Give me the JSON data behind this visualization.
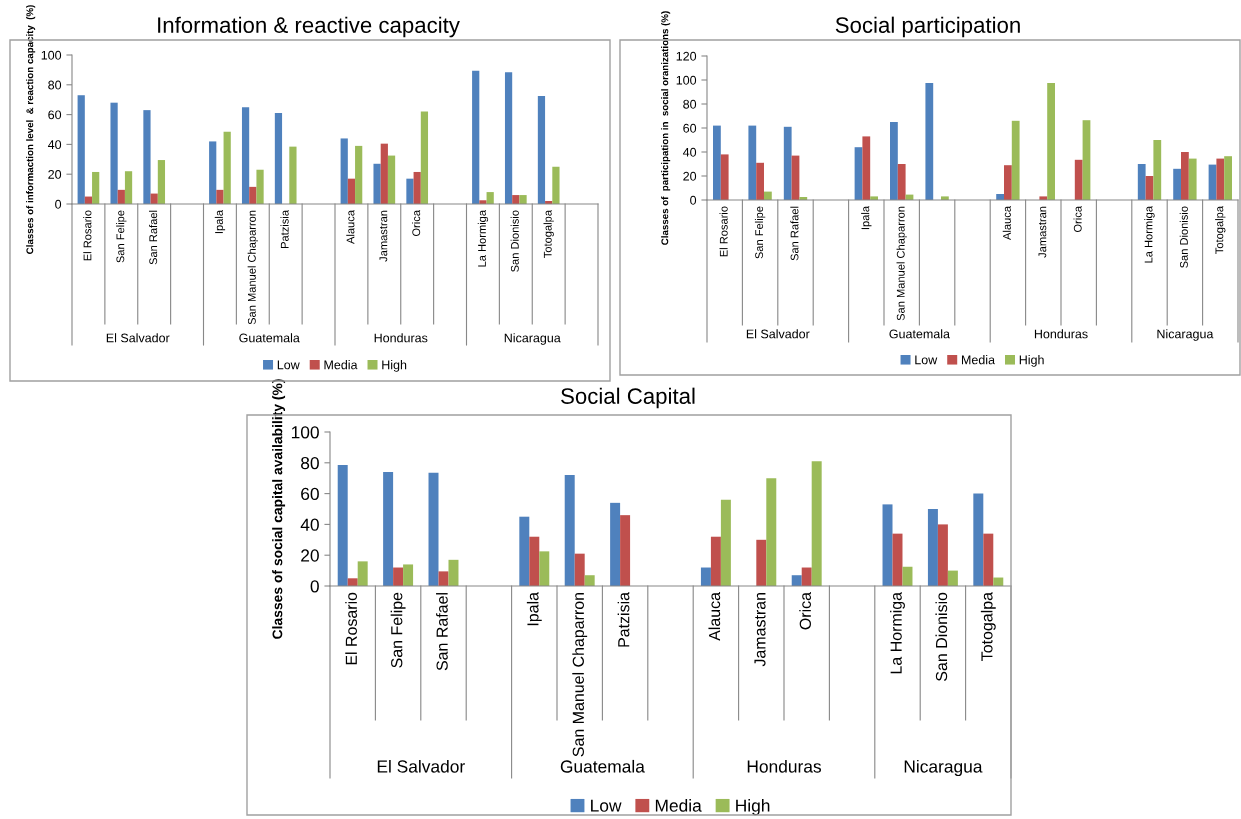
{
  "chart_data": [
    {
      "type": "bar",
      "title": "Information & reactive capacity",
      "ylabel": "Classes of informaction level  & reaction capacity  (%)",
      "categories": [
        "El Rosario",
        "San Felipe",
        "San Rafael",
        null,
        "Ipala",
        "San Manuel Chaparron",
        "Patzisia",
        null,
        "Alauca",
        "Jamastran",
        "Orica",
        null,
        "La Hormiga",
        "San Dionisio",
        "Totogalpa",
        null
      ],
      "series": [
        {
          "name": "Low",
          "color": "#4f81bd",
          "values": [
            73,
            68,
            63,
            null,
            42,
            65,
            61,
            null,
            44,
            27,
            17,
            null,
            89.5,
            88.5,
            72.5,
            null
          ]
        },
        {
          "name": "Media",
          "color": "#c0504d",
          "values": [
            5,
            9.5,
            7,
            null,
            9.5,
            11.5,
            0,
            null,
            17,
            40.5,
            21.5,
            null,
            2.5,
            6,
            2,
            null
          ]
        },
        {
          "name": "High",
          "color": "#9bbb59",
          "values": [
            21.5,
            22,
            29.5,
            null,
            48.5,
            23,
            38.5,
            null,
            39,
            32.5,
            62,
            null,
            8,
            6,
            25,
            null
          ]
        }
      ],
      "ylim": [
        0,
        100
      ],
      "yticks": [
        0,
        20,
        40,
        60,
        80,
        100
      ],
      "grid": false,
      "legend": "bottom",
      "annotations": [
        "El Salvador",
        "Guatemala",
        "Honduras",
        "Nicaragua"
      ]
    },
    {
      "type": "bar",
      "title": "Social participation",
      "ylabel": "Classes of  participation in  social oranizations (%)",
      "categories": [
        "El Rosario",
        "San Felipe",
        "San Rafael",
        null,
        "Ipala",
        "San Manuel Chaparron",
        null,
        null,
        "Alauca",
        "Jamastran",
        "Orica",
        null,
        "La Hormiga",
        "San Dionisio",
        "Totogalpa"
      ],
      "series": [
        {
          "name": "Low",
          "color": "#4f81bd",
          "values": [
            62,
            62,
            61,
            null,
            44,
            65,
            97.5,
            null,
            5,
            0,
            0,
            null,
            30,
            26,
            29.5
          ]
        },
        {
          "name": "Media",
          "color": "#c0504d",
          "values": [
            38,
            31,
            37,
            null,
            53,
            30,
            0,
            null,
            29,
            3,
            33.5,
            null,
            20,
            40,
            34.5
          ]
        },
        {
          "name": "High",
          "color": "#9bbb59",
          "values": [
            0,
            7,
            2.5,
            null,
            3,
            4.5,
            3,
            null,
            66,
            97.5,
            66.5,
            null,
            50,
            34.5,
            36.5
          ]
        }
      ],
      "ylim": [
        0,
        120
      ],
      "yticks": [
        0,
        20,
        40,
        60,
        80,
        100,
        120
      ],
      "grid": false,
      "legend": "bottom",
      "annotations": [
        "El Salvador",
        "Guatemala",
        "Honduras",
        "Nicaragua"
      ]
    },
    {
      "type": "bar",
      "title": "Social Capital",
      "ylabel": "Classes of social capital availability (%)",
      "categories": [
        "El Rosario",
        "San Felipe",
        "San Rafael",
        null,
        "Ipala",
        "San Manuel Chaparron",
        "Patzisia",
        null,
        "Alauca",
        "Jamastran",
        "Orica",
        null,
        "La Hormiga",
        "San Dionisio",
        "Totogalpa"
      ],
      "series": [
        {
          "name": "Low",
          "color": "#4f81bd",
          "values": [
            78.5,
            74,
            73.5,
            null,
            45,
            72,
            54,
            null,
            12,
            0,
            7,
            null,
            53,
            50,
            60
          ]
        },
        {
          "name": "Media",
          "color": "#c0504d",
          "values": [
            5,
            12,
            9.5,
            null,
            32,
            21,
            46,
            null,
            32,
            30,
            12,
            null,
            34,
            40,
            34
          ]
        },
        {
          "name": "High",
          "color": "#9bbb59",
          "values": [
            16,
            14,
            17,
            null,
            22.5,
            7,
            0,
            null,
            56,
            70,
            81,
            null,
            12.5,
            10,
            5.5
          ]
        }
      ],
      "ylim": [
        0,
        100
      ],
      "yticks": [
        0,
        20,
        40,
        60,
        80,
        100
      ],
      "grid": false,
      "legend": "bottom",
      "annotations": [
        "El Salvador",
        "Guatemala",
        "Honduras",
        "Nicaragua"
      ]
    }
  ]
}
